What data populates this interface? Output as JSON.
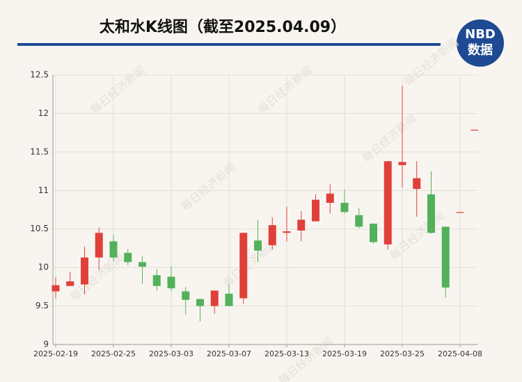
{
  "chart_data": {
    "type": "candlestick",
    "title": "太和水K线图（截至2025.04.09）",
    "logo": {
      "top": "NBD",
      "bottom": "数据"
    },
    "watermark": "每日经济新闻",
    "categories": [
      "2025-02-19",
      null,
      null,
      null,
      "2025-02-25",
      null,
      null,
      null,
      "2025-03-03",
      null,
      null,
      null,
      "2025-03-07",
      null,
      null,
      null,
      "2025-03-13",
      null,
      null,
      null,
      "2025-03-19",
      null,
      null,
      null,
      "2025-03-25",
      null,
      null,
      null,
      "2025-04-08",
      null
    ],
    "open": [
      9.69,
      9.76,
      9.78,
      10.13,
      10.34,
      10.19,
      10.07,
      9.9,
      9.88,
      9.69,
      9.59,
      9.5,
      9.66,
      9.6,
      10.35,
      10.29,
      10.45,
      10.48,
      10.6,
      10.84,
      10.84,
      10.68,
      10.57,
      10.3,
      11.33,
      11.02,
      10.95,
      10.53,
      10.72,
      11.79
    ],
    "high": [
      9.87,
      9.94,
      10.27,
      10.52,
      10.42,
      10.24,
      10.15,
      9.98,
      10.02,
      9.75,
      9.6,
      9.7,
      9.78,
      10.45,
      10.62,
      10.65,
      10.79,
      10.73,
      10.95,
      11.08,
      11.01,
      10.77,
      10.57,
      11.38,
      12.36,
      11.38,
      11.25,
      10.53,
      10.72,
      11.79
    ],
    "low": [
      9.6,
      9.76,
      9.65,
      9.97,
      10.08,
      10.03,
      9.79,
      9.7,
      9.69,
      9.39,
      9.3,
      9.4,
      9.5,
      9.53,
      10.07,
      10.23,
      10.34,
      10.34,
      10.6,
      10.7,
      10.7,
      10.51,
      10.31,
      10.23,
      11.04,
      10.66,
      10.44,
      9.61,
      10.72,
      11.79
    ],
    "close": [
      9.77,
      9.82,
      10.13,
      10.45,
      10.13,
      10.07,
      10.01,
      9.76,
      9.73,
      9.58,
      9.5,
      9.7,
      9.5,
      10.45,
      10.22,
      10.55,
      10.47,
      10.62,
      10.88,
      10.96,
      10.72,
      10.53,
      10.33,
      11.38,
      11.37,
      11.16,
      10.45,
      9.74,
      10.72,
      11.79
    ],
    "up_color": "#e0403a",
    "down_color": "#52b15a",
    "ylim": [
      9,
      12.5
    ],
    "yticks": [
      9,
      9.5,
      10,
      10.5,
      11,
      11.5,
      12,
      12.5
    ],
    "grid": true
  }
}
